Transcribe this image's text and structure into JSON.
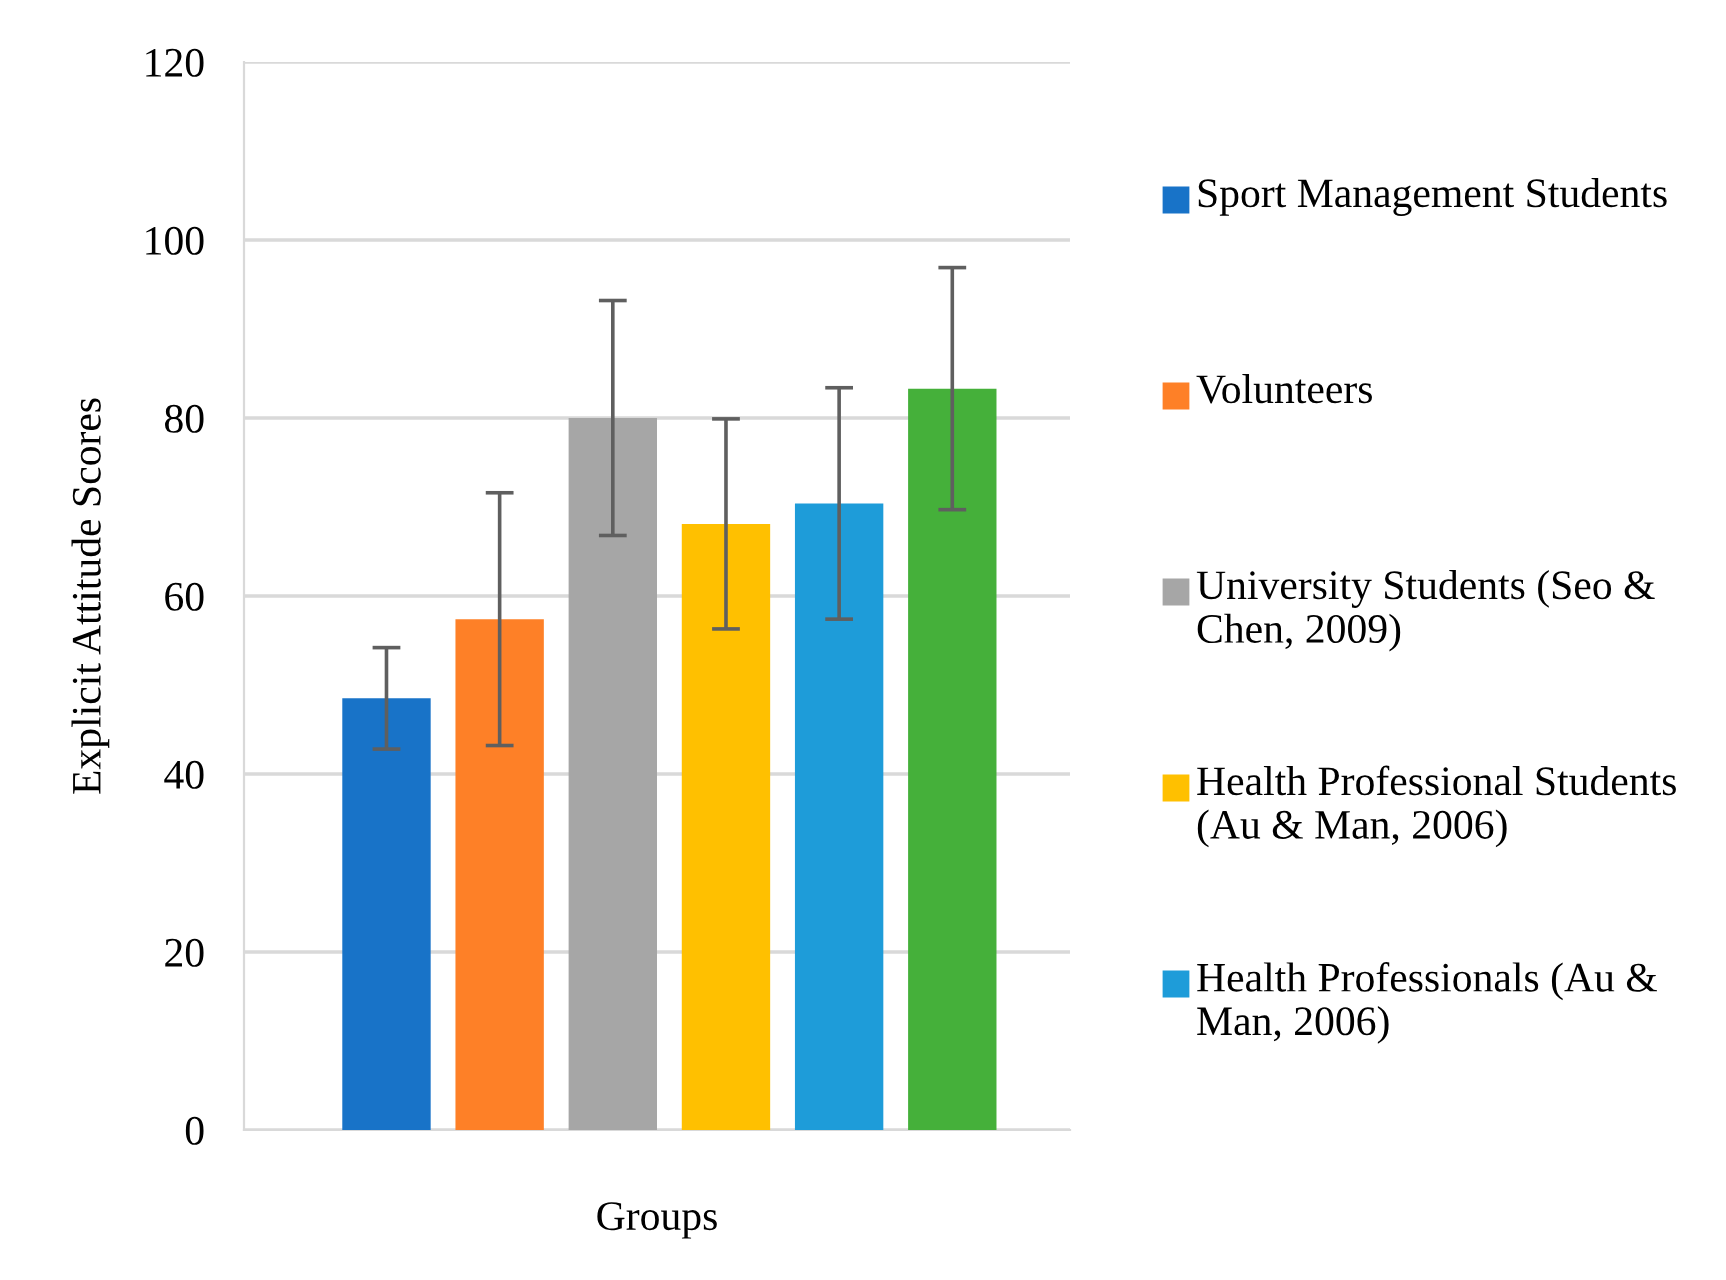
{
  "chart_data": {
    "type": "bar",
    "xlabel": "Groups",
    "ylabel": "Explicit Attitude Scores",
    "categories": [
      null
    ],
    "series": [
      {
        "name": "Sport Management Students",
        "color": "#1873c8",
        "values": [
          48.5
        ],
        "errors": [
          5.7
        ]
      },
      {
        "name": "Volunteers",
        "color": "#fe8027",
        "values": [
          57.4
        ],
        "errors": [
          14.2
        ]
      },
      {
        "name": "University Students (Seo & Chen, 2009)",
        "color": "#a6a6a6",
        "values": [
          80.0
        ],
        "errors": [
          13.2
        ]
      },
      {
        "name": "Health Professional Students (Au & Man, 2006)",
        "color": "#ffc000",
        "values": [
          68.1
        ],
        "errors": [
          11.8
        ]
      },
      {
        "name": "Health Professionals (Au & Man, 2006)",
        "color": "#1e9cd9",
        "values": [
          70.4
        ],
        "errors": [
          13.0
        ]
      },
      {
        "color": "#45b03a",
        "values": [
          83.3
        ],
        "errors": [
          13.6
        ]
      }
    ],
    "ylim": [
      0,
      120
    ],
    "yticks": [
      0,
      20,
      40,
      60,
      80,
      100,
      120
    ],
    "grid": "y",
    "legend": "right"
  }
}
